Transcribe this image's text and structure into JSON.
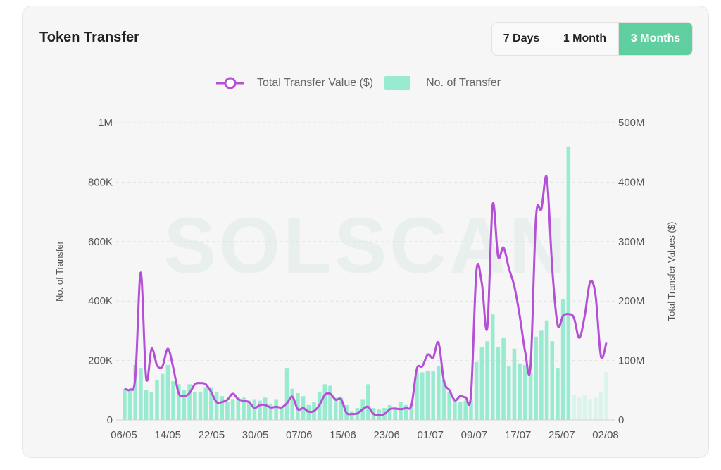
{
  "card": {
    "title": "Token Transfer",
    "ranges": [
      "7 Days",
      "1 Month",
      "3 Months"
    ],
    "active_range": "3 Months",
    "watermark": "SOLSCAN"
  },
  "legend": {
    "line_label": "Total Transfer Value ($)",
    "bar_label": "No. of Transfer"
  },
  "colors": {
    "bar": "#98ebd0",
    "line": "#b44fd6",
    "active_button": "#5fcf9f"
  },
  "chart_data": {
    "type": "bar+line",
    "x_tick_labels": [
      "06/05",
      "14/05",
      "22/05",
      "30/05",
      "07/06",
      "15/06",
      "23/06",
      "01/07",
      "09/07",
      "17/07",
      "25/07",
      "02/08"
    ],
    "left_axis": {
      "label": "No. of Transfer",
      "ticks": [
        "0",
        "200K",
        "400K",
        "600K",
        "800K",
        "1M"
      ],
      "range": [
        0,
        1000000
      ]
    },
    "right_axis": {
      "label": "Total Transfer Values ($)",
      "ticks": [
        "0",
        "100M",
        "200M",
        "300M",
        "400M",
        "500M"
      ],
      "range": [
        0,
        500000000
      ]
    },
    "series": [
      {
        "name": "No. of Transfer",
        "kind": "bar",
        "axis": "left",
        "values": [
          105000,
          100000,
          185000,
          175000,
          100000,
          95000,
          135000,
          155000,
          185000,
          130000,
          120000,
          100000,
          120000,
          95000,
          95000,
          110000,
          110000,
          95000,
          80000,
          60000,
          70000,
          75000,
          75000,
          65000,
          70000,
          65000,
          75000,
          55000,
          70000,
          45000,
          175000,
          105000,
          90000,
          80000,
          50000,
          60000,
          95000,
          120000,
          115000,
          75000,
          75000,
          50000,
          30000,
          40000,
          70000,
          120000,
          40000,
          35000,
          40000,
          50000,
          45000,
          60000,
          50000,
          50000,
          160000,
          160000,
          165000,
          165000,
          180000,
          135000,
          95000,
          70000,
          60000,
          65000,
          65000,
          195000,
          245000,
          265000,
          355000,
          245000,
          275000,
          180000,
          240000,
          190000,
          185000,
          160000,
          280000,
          300000,
          335000,
          265000,
          175000,
          405000,
          920000,
          85000,
          75000,
          85000,
          70000,
          75000,
          95000,
          160000
        ],
        "partial_from_index": 83
      },
      {
        "name": "Total Transfer Value ($)",
        "kind": "line",
        "axis": "right",
        "points": [
          [
            0,
            53000000
          ],
          [
            1,
            51000000
          ],
          [
            2,
            72000000
          ],
          [
            3,
            248000000
          ],
          [
            4,
            70000000
          ],
          [
            5,
            120000000
          ],
          [
            6,
            92000000
          ],
          [
            7,
            90000000
          ],
          [
            8,
            120000000
          ],
          [
            9,
            88000000
          ],
          [
            10,
            45000000
          ],
          [
            11,
            40000000
          ],
          [
            12,
            45000000
          ],
          [
            13,
            60000000
          ],
          [
            14,
            62000000
          ],
          [
            15,
            60000000
          ],
          [
            16,
            47000000
          ],
          [
            17,
            30000000
          ],
          [
            18,
            30000000
          ],
          [
            19,
            34000000
          ],
          [
            20,
            44000000
          ],
          [
            21,
            35000000
          ],
          [
            22,
            32000000
          ],
          [
            23,
            30000000
          ],
          [
            24,
            20000000
          ],
          [
            25,
            25000000
          ],
          [
            26,
            25000000
          ],
          [
            27,
            21000000
          ],
          [
            28,
            22000000
          ],
          [
            29,
            21000000
          ],
          [
            30,
            28000000
          ],
          [
            31,
            39000000
          ],
          [
            32,
            18000000
          ],
          [
            33,
            20000000
          ],
          [
            34,
            14000000
          ],
          [
            35,
            15000000
          ],
          [
            36,
            25000000
          ],
          [
            37,
            42000000
          ],
          [
            38,
            44000000
          ],
          [
            39,
            34000000
          ],
          [
            40,
            35000000
          ],
          [
            41,
            12000000
          ],
          [
            42,
            10000000
          ],
          [
            43,
            11000000
          ],
          [
            44,
            18000000
          ],
          [
            45,
            22000000
          ],
          [
            46,
            10000000
          ],
          [
            47,
            8000000
          ],
          [
            48,
            10000000
          ],
          [
            49,
            18000000
          ],
          [
            50,
            19000000
          ],
          [
            51,
            18000000
          ],
          [
            52,
            20000000
          ],
          [
            53,
            25000000
          ],
          [
            54,
            86000000
          ],
          [
            55,
            90000000
          ],
          [
            56,
            110000000
          ],
          [
            57,
            105000000
          ],
          [
            58,
            130000000
          ],
          [
            59,
            65000000
          ],
          [
            60,
            50000000
          ],
          [
            61,
            33000000
          ],
          [
            62,
            40000000
          ],
          [
            63,
            38000000
          ],
          [
            64,
            42000000
          ],
          [
            65,
            250000000
          ],
          [
            66,
            230000000
          ],
          [
            67,
            155000000
          ],
          [
            68,
            362000000
          ],
          [
            69,
            275000000
          ],
          [
            70,
            290000000
          ],
          [
            71,
            255000000
          ],
          [
            72,
            225000000
          ],
          [
            73,
            175000000
          ],
          [
            74,
            115000000
          ],
          [
            75,
            90000000
          ],
          [
            76,
            340000000
          ],
          [
            77,
            355000000
          ],
          [
            78,
            407000000
          ],
          [
            79,
            255000000
          ],
          [
            80,
            160000000
          ],
          [
            81,
            175000000
          ],
          [
            82,
            178000000
          ],
          [
            83,
            172000000
          ],
          [
            84,
            138000000
          ],
          [
            85,
            175000000
          ],
          [
            86,
            232000000
          ],
          [
            87,
            210000000
          ],
          [
            88,
            107000000
          ],
          [
            89,
            130000000
          ]
        ]
      }
    ],
    "grid": "horizontal dashed",
    "legend_position": "top-center"
  }
}
